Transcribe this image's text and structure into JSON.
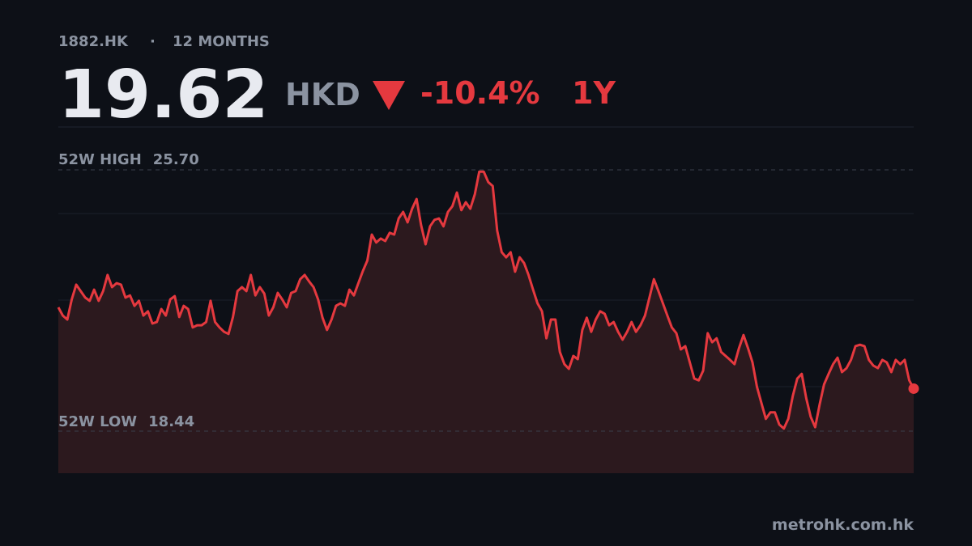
{
  "header": {
    "ticker": "1882.HK",
    "separator": "·",
    "period": "12 MONTHS",
    "price": 19.62,
    "currency": "HKD",
    "change": "-10.4%",
    "range": "1Y"
  },
  "chart_data": {
    "type": "line",
    "color": "#e5393f",
    "ylim": [
      17.27,
      26.89
    ],
    "high": {
      "name": "52W HIGH",
      "value": 25.7,
      "label": "25.70"
    },
    "low": {
      "name": "52W LOW",
      "value": 18.44,
      "label": "18.44"
    },
    "values": [
      21.88,
      21.65,
      21.54,
      22.1,
      22.51,
      22.33,
      22.15,
      22.06,
      22.37,
      22.06,
      22.33,
      22.78,
      22.44,
      22.55,
      22.51,
      22.15,
      22.21,
      21.92,
      22.06,
      21.65,
      21.77,
      21.43,
      21.47,
      21.83,
      21.65,
      22.1,
      22.19,
      21.61,
      21.92,
      21.83,
      21.32,
      21.38,
      21.38,
      21.47,
      22.06,
      21.47,
      21.32,
      21.2,
      21.14,
      21.61,
      22.33,
      22.44,
      22.33,
      22.78,
      22.21,
      22.44,
      22.26,
      21.65,
      21.88,
      22.28,
      22.1,
      21.88,
      22.28,
      22.33,
      22.66,
      22.78,
      22.6,
      22.44,
      22.1,
      21.59,
      21.25,
      21.54,
      21.92,
      21.99,
      21.92,
      22.37,
      22.21,
      22.55,
      22.89,
      23.18,
      23.9,
      23.68,
      23.79,
      23.72,
      23.95,
      23.9,
      24.35,
      24.53,
      24.24,
      24.62,
      24.89,
      24.17,
      23.63,
      24.13,
      24.31,
      24.35,
      24.13,
      24.53,
      24.69,
      25.07,
      24.58,
      24.8,
      24.62,
      25.02,
      25.65,
      25.65,
      25.36,
      25.25,
      24.01,
      23.41,
      23.27,
      23.41,
      22.87,
      23.27,
      23.11,
      22.78,
      22.37,
      21.99,
      21.77,
      21.02,
      21.54,
      21.54,
      20.64,
      20.3,
      20.17,
      20.53,
      20.44,
      21.25,
      21.59,
      21.2,
      21.54,
      21.77,
      21.7,
      21.38,
      21.47,
      21.2,
      20.98,
      21.2,
      21.47,
      21.2,
      21.38,
      21.65,
      22.15,
      22.66,
      22.33,
      21.99,
      21.65,
      21.32,
      21.16,
      20.71,
      20.8,
      20.35,
      19.9,
      19.85,
      20.12,
      21.16,
      20.91,
      21.02,
      20.64,
      20.53,
      20.42,
      20.3,
      20.75,
      21.11,
      20.75,
      20.35,
      19.67,
      19.22,
      18.78,
      18.96,
      18.96,
      18.62,
      18.51,
      18.78,
      19.41,
      19.9,
      20.03,
      19.36,
      18.84,
      18.55,
      19.18,
      19.74,
      20.03,
      20.3,
      20.48,
      20.08,
      20.19,
      20.42,
      20.8,
      20.84,
      20.8,
      20.42,
      20.26,
      20.19,
      20.42,
      20.35,
      20.08,
      20.42,
      20.3,
      20.42,
      19.85,
      19.62
    ]
  },
  "footer": {
    "source": "metrohk.com.hk"
  }
}
